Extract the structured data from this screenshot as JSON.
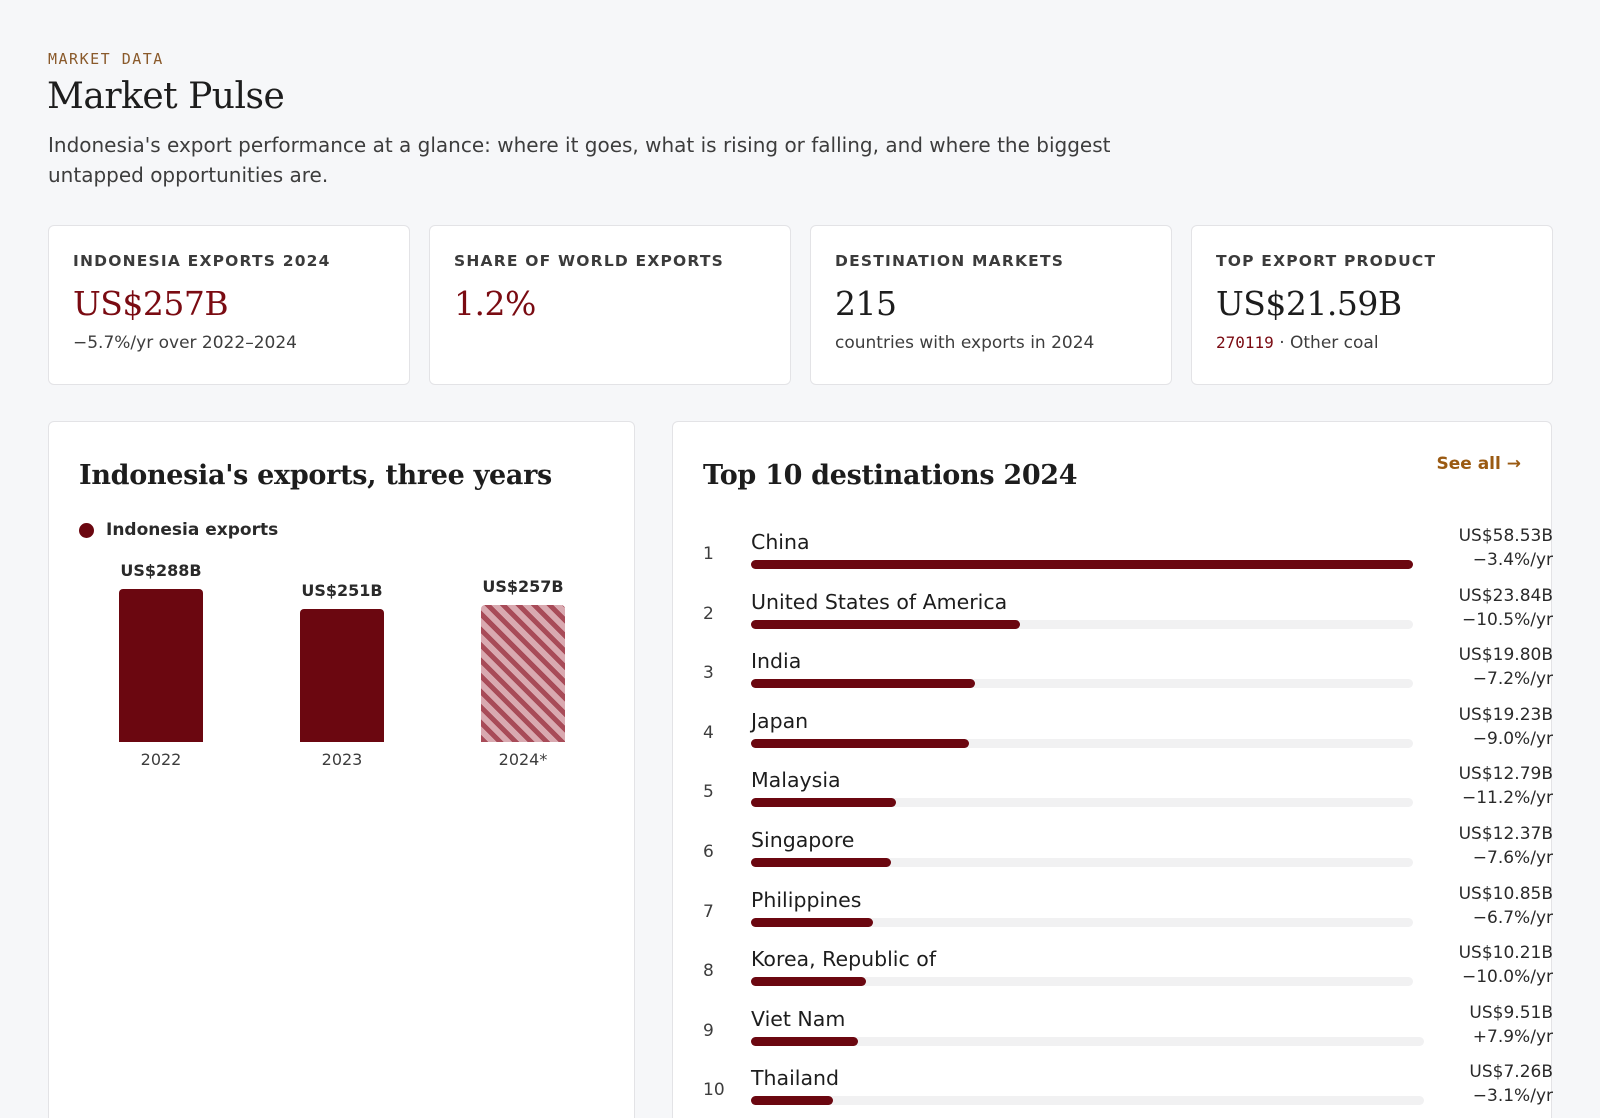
{
  "header": {
    "eyebrow": "MARKET DATA",
    "title": "Market Pulse",
    "lede": "Indonesia's export performance at a glance: where it goes, what is rising or falling, and where the biggest untapped opportunities are."
  },
  "kpis": [
    {
      "label": "INDONESIA EXPORTS 2024",
      "value": "US$257B",
      "sub": "−5.7%/yr over 2022–2024"
    },
    {
      "label": "SHARE OF WORLD EXPORTS",
      "value": "1.2%",
      "sub": ""
    },
    {
      "label": "DESTINATION MARKETS",
      "value": "215",
      "sub": "countries with exports in 2024"
    },
    {
      "label": "TOP EXPORT PRODUCT",
      "value": "US$21.59B",
      "code": "270119",
      "sub": " · Other coal"
    }
  ],
  "exports_panel": {
    "title": "Indonesia's exports, three years",
    "legend": "Indonesia exports"
  },
  "destinations_panel": {
    "title": "Top 10 destinations 2024",
    "see_all": "See all →",
    "rows": [
      {
        "rank": "1",
        "country": "China",
        "value": "US$58.53B",
        "change": "−3.4%/yr",
        "share": 1.0
      },
      {
        "rank": "2",
        "country": "United States of America",
        "value": "US$23.84B",
        "change": "−10.5%/yr",
        "share": 0.407
      },
      {
        "rank": "3",
        "country": "India",
        "value": "US$19.80B",
        "change": "−7.2%/yr",
        "share": 0.338
      },
      {
        "rank": "4",
        "country": "Japan",
        "value": "US$19.23B",
        "change": "−9.0%/yr",
        "share": 0.329
      },
      {
        "rank": "5",
        "country": "Malaysia",
        "value": "US$12.79B",
        "change": "−11.2%/yr",
        "share": 0.219
      },
      {
        "rank": "6",
        "country": "Singapore",
        "value": "US$12.37B",
        "change": "−7.6%/yr",
        "share": 0.211
      },
      {
        "rank": "7",
        "country": "Philippines",
        "value": "US$10.85B",
        "change": "−6.7%/yr",
        "share": 0.185
      },
      {
        "rank": "8",
        "country": "Korea, Republic of",
        "value": "US$10.21B",
        "change": "−10.0%/yr",
        "share": 0.174
      },
      {
        "rank": "9",
        "country": "Viet Nam",
        "value": "US$9.51B",
        "change": "+7.9%/yr",
        "share": 0.162
      },
      {
        "rank": "10",
        "country": "Thailand",
        "value": "US$7.26B",
        "change": "−3.1%/yr",
        "share": 0.124
      }
    ]
  },
  "chart_data": {
    "type": "bar",
    "title": "Indonesia's exports, three years",
    "categories": [
      "2022",
      "2023",
      "2024*"
    ],
    "series": [
      {
        "name": "Indonesia exports",
        "values": [
          288,
          251,
          257
        ]
      }
    ],
    "value_labels": [
      "US$288B",
      "US$251B",
      "US$257B"
    ],
    "ylabel": "",
    "ylim": [
      0,
      288
    ],
    "colors": {
      "solid": "#6b0710",
      "provisional": "#a84b58"
    }
  }
}
